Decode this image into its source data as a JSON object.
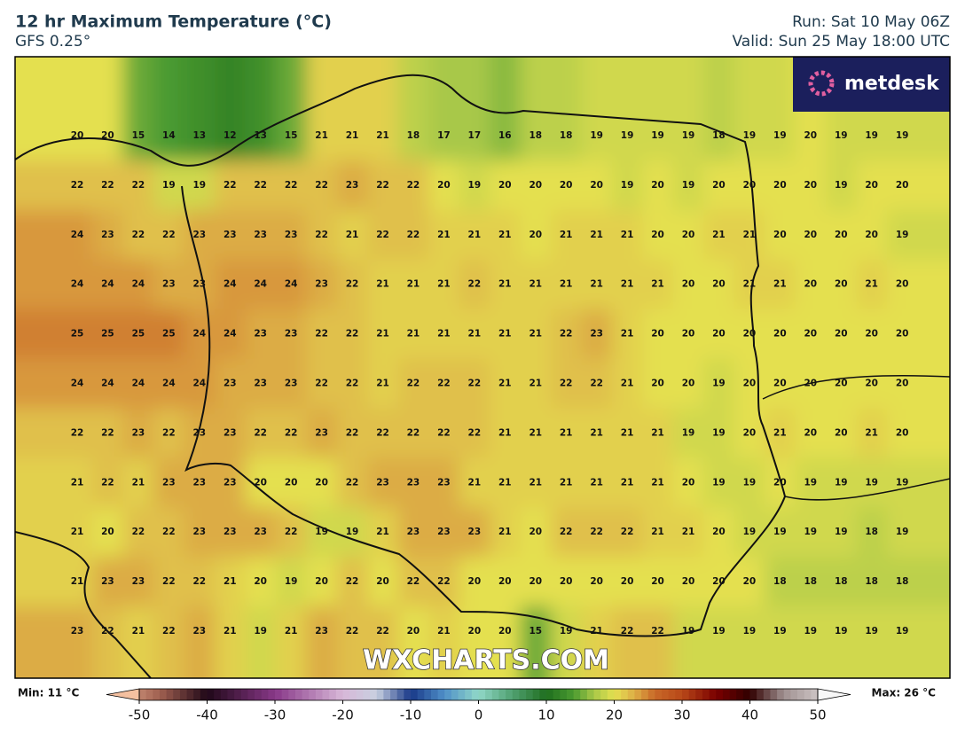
{
  "header": {
    "title": "12 hr Maximum Temperature (°C)",
    "subtitle": "GFS 0.25°",
    "run": "Run: Sat 10 May 06Z",
    "valid": "Valid: Sun 25 May 18:00 UTC"
  },
  "logo": "metdesk",
  "watermark": "WXCHARTS.COM",
  "grid": {
    "rows": [
      [
        20,
        20,
        15,
        14,
        13,
        12,
        13,
        15,
        21,
        21,
        21,
        18,
        17,
        17,
        16,
        18,
        18,
        19,
        19,
        19,
        19,
        18,
        19,
        19,
        20,
        19,
        19,
        19
      ],
      [
        22,
        22,
        22,
        19,
        19,
        22,
        22,
        22,
        22,
        23,
        22,
        22,
        20,
        19,
        20,
        20,
        20,
        20,
        19,
        20,
        19,
        20,
        20,
        20,
        20,
        19,
        20,
        20
      ],
      [
        24,
        23,
        22,
        22,
        23,
        23,
        23,
        23,
        22,
        21,
        22,
        22,
        21,
        21,
        21,
        20,
        21,
        21,
        21,
        20,
        20,
        21,
        21,
        20,
        20,
        20,
        20,
        19
      ],
      [
        24,
        24,
        24,
        23,
        23,
        24,
        24,
        24,
        23,
        22,
        21,
        21,
        21,
        22,
        21,
        21,
        21,
        21,
        21,
        21,
        20,
        20,
        21,
        21,
        20,
        20,
        21,
        20
      ],
      [
        25,
        25,
        25,
        25,
        24,
        24,
        23,
        23,
        22,
        22,
        21,
        21,
        21,
        21,
        21,
        21,
        22,
        23,
        21,
        20,
        20,
        20,
        20,
        20,
        20,
        20,
        20,
        20
      ],
      [
        24,
        24,
        24,
        24,
        24,
        23,
        23,
        23,
        22,
        22,
        21,
        22,
        22,
        22,
        21,
        21,
        22,
        22,
        21,
        20,
        20,
        19,
        20,
        20,
        20,
        20,
        20,
        20
      ],
      [
        22,
        22,
        23,
        22,
        23,
        23,
        22,
        22,
        23,
        22,
        22,
        22,
        22,
        22,
        21,
        21,
        21,
        21,
        21,
        21,
        19,
        19,
        20,
        21,
        20,
        20,
        21,
        20
      ],
      [
        21,
        22,
        21,
        23,
        23,
        23,
        20,
        20,
        20,
        22,
        23,
        23,
        23,
        21,
        21,
        21,
        21,
        21,
        21,
        21,
        20,
        19,
        19,
        20,
        19,
        19,
        19,
        19
      ],
      [
        21,
        20,
        22,
        22,
        23,
        23,
        23,
        22,
        19,
        19,
        21,
        23,
        23,
        23,
        21,
        20,
        22,
        22,
        22,
        21,
        21,
        20,
        19,
        19,
        19,
        19,
        18,
        19
      ],
      [
        21,
        23,
        23,
        22,
        22,
        21,
        20,
        19,
        20,
        22,
        20,
        22,
        22,
        20,
        20,
        20,
        20,
        20,
        20,
        20,
        20,
        20,
        20,
        18,
        18,
        18,
        18,
        18
      ],
      [
        23,
        22,
        21,
        22,
        23,
        21,
        19,
        21,
        23,
        22,
        22,
        20,
        21,
        20,
        20,
        15,
        19,
        21,
        22,
        22,
        19,
        19,
        19,
        19,
        19,
        19,
        19,
        19
      ]
    ]
  },
  "colorbar": {
    "min_label": "Min: 11 °C",
    "max_label": "Max: 26 °C",
    "range": [
      -50,
      50
    ],
    "ticks": [
      -50,
      -40,
      -30,
      -20,
      -10,
      0,
      10,
      20,
      30,
      40,
      50
    ]
  }
}
